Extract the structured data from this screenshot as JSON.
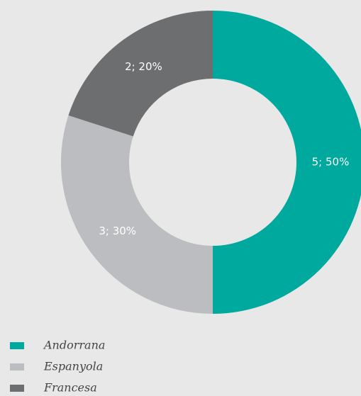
{
  "chart_data": {
    "type": "donut",
    "categories": [
      "Andorrana",
      "Espanyola",
      "Francesa"
    ],
    "values": [
      5,
      3,
      2
    ],
    "value_labels": [
      "5; 50%",
      "3; 30%",
      "2; 20%"
    ],
    "colors": [
      "#00a99d",
      "#bcbdc0",
      "#6d6e70"
    ]
  }
}
